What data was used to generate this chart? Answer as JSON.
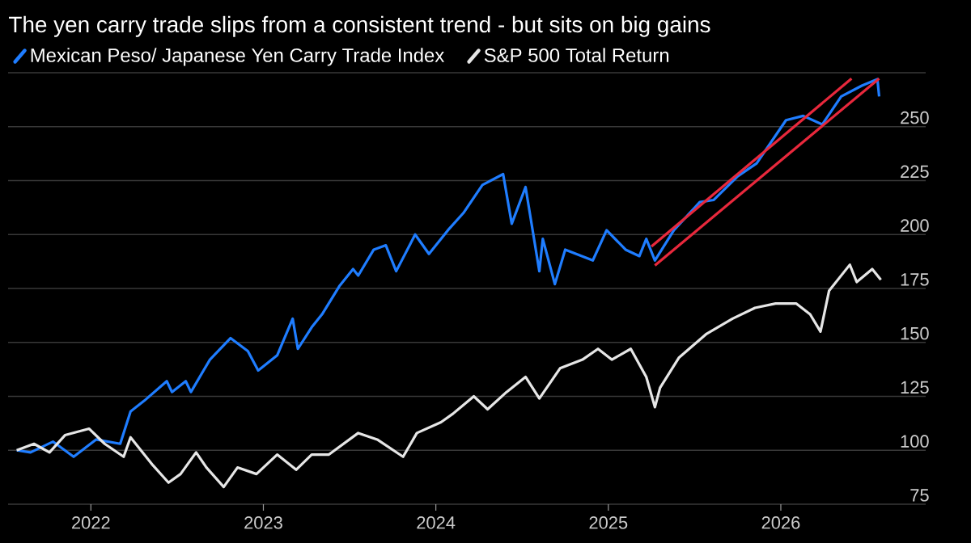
{
  "chart_data": {
    "type": "line",
    "title": "The yen carry trade slips from a consistent trend - but sits on big gains",
    "xlim": [
      2021.52,
      2026.84
    ],
    "xticks": [
      2022,
      2023,
      2024,
      2025,
      2026
    ],
    "ylim": [
      75,
      275
    ],
    "yticks": [
      75,
      100,
      125,
      150,
      175,
      200,
      225,
      250,
      {
        "value": 275,
        "label": null
      }
    ],
    "grid": "y",
    "legend": "top left",
    "marker": "none",
    "line_style": "solid",
    "series": [
      {
        "name": "Mexican Peso/ Japanese Yen Carry Trade Index",
        "color": "#1f7dff",
        "x": [
          2021.57,
          2021.65,
          2021.78,
          2021.9,
          2022.03,
          2022.17,
          2022.23,
          2022.31,
          2022.44,
          2022.47,
          2022.55,
          2022.58,
          2022.69,
          2022.81,
          2022.91,
          2022.97,
          2023.08,
          2023.17,
          2023.2,
          2023.28,
          2023.34,
          2023.44,
          2023.52,
          2023.55,
          2023.64,
          2023.71,
          2023.77,
          2023.88,
          2023.96,
          2024.07,
          2024.16,
          2024.27,
          2024.39,
          2024.44,
          2024.52,
          2024.6,
          2024.62,
          2024.69,
          2024.75,
          2024.91,
          2024.99,
          2025.1,
          2025.18,
          2025.22,
          2025.27,
          2025.38,
          2025.53,
          2025.61,
          2025.75,
          2025.86,
          2026.03,
          2026.13,
          2026.24,
          2026.35,
          2026.47,
          2026.56,
          2026.57
        ],
        "values": [
          100,
          99,
          104,
          97,
          105,
          103,
          118,
          123,
          132,
          127,
          132,
          127,
          142,
          152,
          146,
          137,
          144,
          161,
          147,
          157,
          163,
          176,
          184,
          181,
          193,
          195,
          183,
          200,
          191,
          202,
          210,
          223,
          228,
          205,
          222,
          183,
          198,
          177,
          193,
          188,
          202,
          193,
          190,
          198,
          188,
          202,
          215,
          216,
          227,
          233,
          253,
          255,
          251,
          264,
          269,
          272,
          264
        ]
      },
      {
        "name": "S&P 500 Total Return",
        "color": "#e6e6e6",
        "x": [
          2021.57,
          2021.67,
          2021.76,
          2021.85,
          2021.99,
          2022.08,
          2022.19,
          2022.23,
          2022.36,
          2022.45,
          2022.52,
          2022.61,
          2022.67,
          2022.77,
          2022.85,
          2022.96,
          2023.08,
          2023.19,
          2023.28,
          2023.38,
          2023.55,
          2023.66,
          2023.81,
          2023.89,
          2024.03,
          2024.1,
          2024.22,
          2024.3,
          2024.41,
          2024.52,
          2024.6,
          2024.72,
          2024.85,
          2024.94,
          2025.02,
          2025.13,
          2025.22,
          2025.27,
          2025.3,
          2025.41,
          2025.57,
          2025.72,
          2025.85,
          2025.97,
          2026.09,
          2026.17,
          2026.23,
          2026.28,
          2026.4,
          2026.44,
          2026.53,
          2026.58
        ],
        "values": [
          100,
          103,
          99,
          107,
          110,
          103,
          97,
          106,
          93,
          85,
          89,
          99,
          92,
          83,
          92,
          89,
          98,
          91,
          98,
          98,
          108,
          105,
          97,
          108,
          113,
          117,
          125,
          119,
          127,
          134,
          124,
          138,
          142,
          147,
          142,
          147,
          134,
          120,
          129,
          143,
          154,
          161,
          166,
          168,
          168,
          163,
          155,
          174,
          186,
          178,
          184,
          179
        ]
      },
      {
        "type": "line",
        "color": "#e8283c",
        "x": [
          2025.25,
          2026.41
        ],
        "values": [
          194.5,
          272.3
        ]
      },
      {
        "type": "line",
        "color": "#e8283c",
        "x": [
          2025.27,
          2026.57
        ],
        "values": [
          185.7,
          272.3
        ]
      }
    ]
  }
}
